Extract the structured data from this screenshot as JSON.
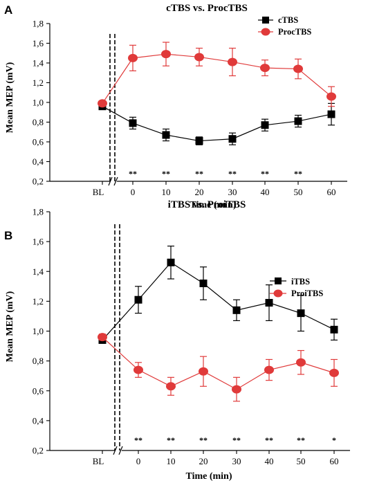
{
  "panels": [
    {
      "letter": "A",
      "chart_data": {
        "type": "line",
        "title": "cTBS vs. ProcTBS",
        "xlabel": "Time (min)",
        "ylabel": "Mean MEP (mV)",
        "categories": [
          "BL",
          "0",
          "10",
          "20",
          "30",
          "40",
          "50",
          "60"
        ],
        "ylim": [
          0.2,
          1.8
        ],
        "yticks": [
          "0,2",
          "0,4",
          "0,6",
          "0,8",
          "1,0",
          "1,2",
          "1,4",
          "1,6",
          "1,8"
        ],
        "significance": [
          "",
          "**",
          "**",
          "**",
          "**",
          "**",
          "**",
          ""
        ],
        "legend_position": "top-right",
        "series": [
          {
            "name": "cTBS",
            "color": "#000000",
            "marker": "square",
            "values": [
              0.96,
              0.79,
              0.67,
              0.61,
              0.63,
              0.77,
              0.81,
              0.88
            ],
            "errors": [
              0.02,
              0.06,
              0.06,
              0.04,
              0.06,
              0.06,
              0.06,
              0.11
            ]
          },
          {
            "name": "ProcTBS",
            "color": "#e03a3a",
            "marker": "circle",
            "values": [
              0.99,
              1.45,
              1.49,
              1.46,
              1.41,
              1.35,
              1.34,
              1.06
            ],
            "errors": [
              0.02,
              0.13,
              0.12,
              0.09,
              0.14,
              0.08,
              0.1,
              0.1
            ]
          }
        ]
      }
    },
    {
      "letter": "B",
      "chart_data": {
        "type": "line",
        "title": "iTBS vs. ProiTBS",
        "xlabel": "Time (min)",
        "ylabel": "Mean MEP (mV)",
        "categories": [
          "BL",
          "0",
          "10",
          "20",
          "30",
          "40",
          "50",
          "60"
        ],
        "ylim": [
          0.2,
          1.8
        ],
        "yticks": [
          "0,2",
          "0,4",
          "0,6",
          "0,8",
          "1,0",
          "1,2",
          "1,4",
          "1,6",
          "1,8"
        ],
        "significance": [
          "",
          "**",
          "**",
          "**",
          "**",
          "**",
          "**",
          "*"
        ],
        "legend_position": "top-right",
        "series": [
          {
            "name": "iTBS",
            "color": "#000000",
            "marker": "square",
            "values": [
              0.94,
              1.21,
              1.46,
              1.32,
              1.14,
              1.19,
              1.12,
              1.01
            ],
            "errors": [
              0.02,
              0.09,
              0.11,
              0.11,
              0.07,
              0.12,
              0.12,
              0.07
            ]
          },
          {
            "name": "ProiTBS",
            "color": "#e03a3a",
            "marker": "circle",
            "values": [
              0.96,
              0.74,
              0.63,
              0.73,
              0.61,
              0.74,
              0.79,
              0.72
            ],
            "errors": [
              0.02,
              0.05,
              0.06,
              0.1,
              0.08,
              0.07,
              0.08,
              0.09
            ]
          }
        ]
      }
    }
  ]
}
